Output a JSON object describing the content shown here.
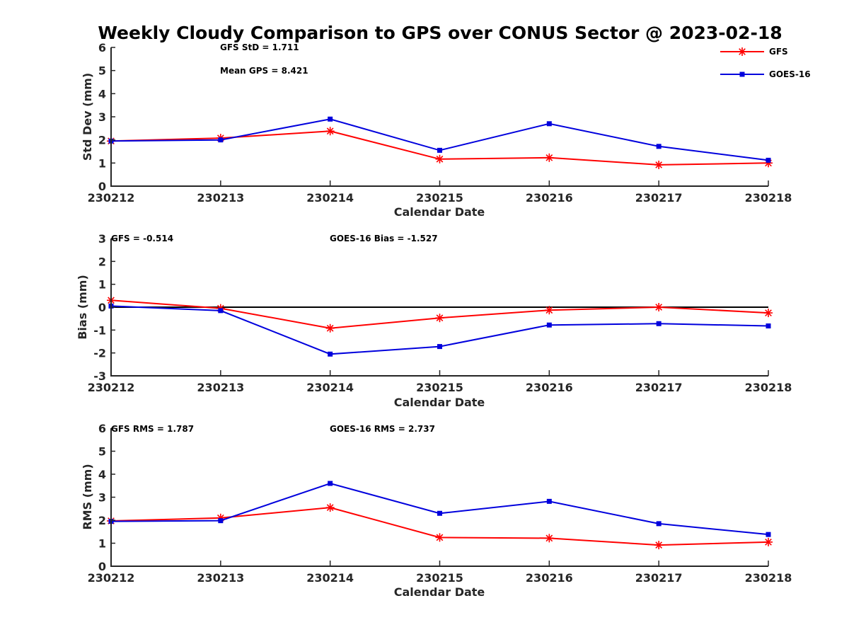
{
  "title": "Weekly Cloudy Comparison to GPS over CONUS Sector @ 2023-02-18",
  "colors": {
    "GFS": "#ff0000",
    "GOES-16": "#0000dd",
    "zero_line": "#000000"
  },
  "legend": {
    "placement": "top-right",
    "entries": [
      {
        "label": "GFS",
        "color": "#ff0000",
        "marker": "asterisk"
      },
      {
        "label": "GOES-16",
        "color": "#0000dd",
        "marker": "square"
      }
    ]
  },
  "chart_data": [
    {
      "type": "line",
      "xlabel": "Calendar Date",
      "ylabel": "Std Dev (mm)",
      "x": [
        "230212",
        "230213",
        "230214",
        "230215",
        "230216",
        "230217",
        "230218"
      ],
      "ylim": [
        0,
        6
      ],
      "yticks": [
        "0",
        "1",
        "2",
        "3",
        "4",
        "5",
        "6"
      ],
      "zero_line": false,
      "annotations": [
        "GFS StD = 1.711",
        "Mean GPS = 8.421"
      ],
      "series": [
        {
          "name": "GFS",
          "values": [
            1.95,
            2.08,
            2.38,
            1.17,
            1.23,
            0.92,
            1.0
          ]
        },
        {
          "name": "GOES-16",
          "values": [
            1.95,
            2.0,
            2.9,
            1.55,
            2.7,
            1.72,
            1.12
          ]
        }
      ]
    },
    {
      "type": "line",
      "xlabel": "Calendar Date",
      "ylabel": "Bias (mm)",
      "x": [
        "230212",
        "230213",
        "230214",
        "230215",
        "230216",
        "230217",
        "230218"
      ],
      "ylim": [
        -3,
        3
      ],
      "yticks": [
        "-3",
        "-2",
        "-1",
        "0",
        "1",
        "2",
        "3"
      ],
      "zero_line": true,
      "annotations": [
        "GFS = -0.514",
        "GOES-16 Bias  = -1.527"
      ],
      "series": [
        {
          "name": "GFS",
          "values": [
            0.3,
            -0.05,
            -0.92,
            -0.47,
            -0.13,
            0.0,
            -0.25
          ]
        },
        {
          "name": "GOES-16",
          "values": [
            0.05,
            -0.15,
            -2.05,
            -1.72,
            -0.78,
            -0.72,
            -0.82
          ]
        }
      ]
    },
    {
      "type": "line",
      "xlabel": "Calendar Date",
      "ylabel": "RMS (mm)",
      "x": [
        "230212",
        "230213",
        "230214",
        "230215",
        "230216",
        "230217",
        "230218"
      ],
      "ylim": [
        0,
        6
      ],
      "yticks": [
        "0",
        "1",
        "2",
        "3",
        "4",
        "5",
        "6"
      ],
      "zero_line": false,
      "annotations": [
        "GFS RMS = 1.787",
        "GOES-16 RMS = 2.737"
      ],
      "series": [
        {
          "name": "GFS",
          "values": [
            1.97,
            2.1,
            2.55,
            1.25,
            1.22,
            0.92,
            1.05
          ]
        },
        {
          "name": "GOES-16",
          "values": [
            1.95,
            1.98,
            3.6,
            2.3,
            2.82,
            1.85,
            1.38
          ]
        }
      ]
    }
  ]
}
